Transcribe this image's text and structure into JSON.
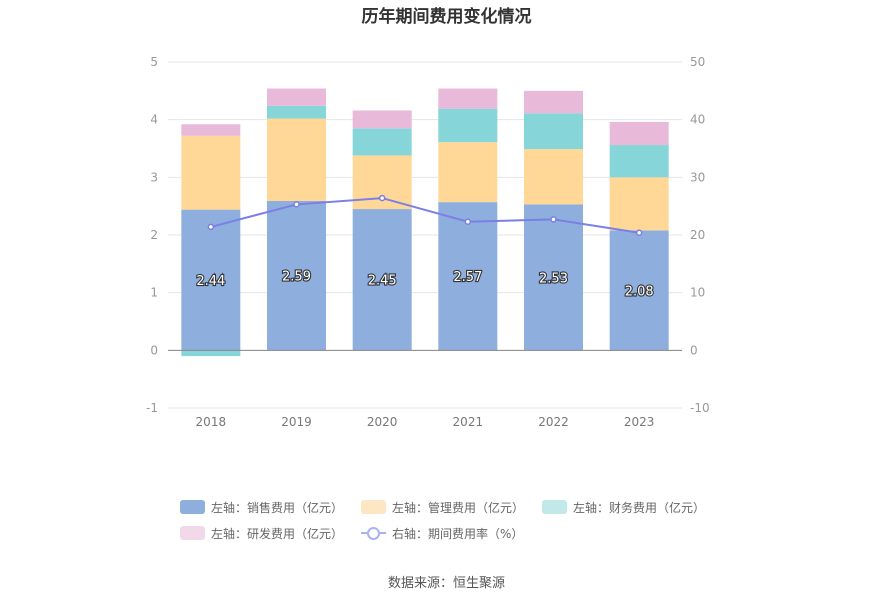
{
  "chart_data": {
    "type": "bar",
    "title": "历年期间费用变化情况",
    "categories": [
      "2018",
      "2019",
      "2020",
      "2021",
      "2022",
      "2023"
    ],
    "series": [
      {
        "name": "左轴：销售费用（亿元）",
        "axis": "left",
        "color": "#8eaedd",
        "values": [
          2.44,
          2.59,
          2.45,
          2.57,
          2.53,
          2.08
        ],
        "labels": [
          "2.44",
          "2.59",
          "2.45",
          "2.57",
          "2.53",
          "2.08"
        ]
      },
      {
        "name": "左轴：管理费用（亿元）",
        "axis": "left",
        "color": "#ffd898",
        "values": [
          1.28,
          1.43,
          0.93,
          1.04,
          0.96,
          0.92
        ]
      },
      {
        "name": "左轴：财务费用（亿元）",
        "axis": "left",
        "color": "#86d6d9",
        "values": [
          -0.1,
          0.22,
          0.47,
          0.58,
          0.62,
          0.56
        ]
      },
      {
        "name": "左轴：研发费用（亿元）",
        "axis": "left",
        "color": "#e8b9d9",
        "values": [
          0.2,
          0.3,
          0.31,
          0.35,
          0.39,
          0.4
        ]
      },
      {
        "name": "右轴：期间费用率（%）",
        "axis": "right",
        "type": "line",
        "color": "#7b7fe6",
        "values": [
          21.4,
          25.3,
          26.4,
          22.3,
          22.7,
          20.4
        ]
      }
    ],
    "ylim": [
      -1,
      5
    ],
    "yticks": [
      "-1",
      "0",
      "1",
      "2",
      "3",
      "4",
      "5"
    ],
    "y2lim": [
      -10,
      50
    ],
    "y2ticks": [
      "-10",
      "0",
      "10",
      "20",
      "30",
      "40",
      "50"
    ],
    "stacked": true,
    "grid": true,
    "legend_position": "bottom"
  },
  "source_text": "数据来源：恒生聚源"
}
